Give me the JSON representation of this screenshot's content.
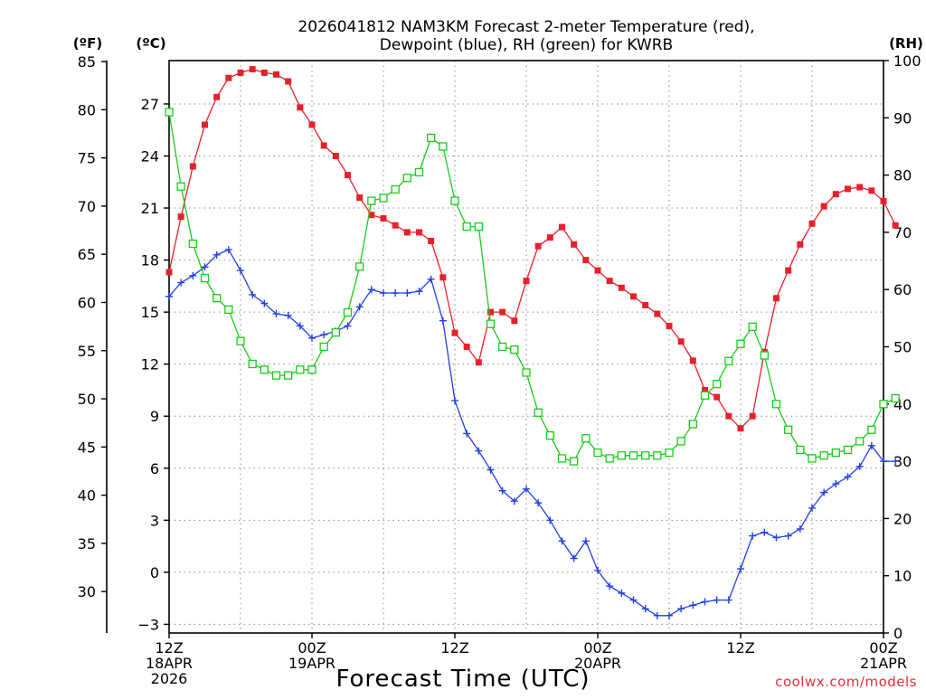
{
  "chart_data": {
    "type": "line",
    "title_line1": "2026041812 NAM3KM Forecast 2-meter Temperature (red),",
    "title_line2": "Dewpoint (blue), RH (green) for KWRB",
    "xlabel": "Forecast Time (UTC)",
    "credit": "coolwx.com/models",
    "units": {
      "fahrenheit": "(ºF)",
      "celsius": "(ºC)",
      "rh": "(RH)"
    },
    "x_range_hours": [
      0,
      60
    ],
    "celsius_range": [
      -3.5,
      29.5
    ],
    "rh_range": [
      0,
      100
    ],
    "fahrenheit_ticks": [
      85,
      80,
      75,
      70,
      65,
      60,
      55,
      50,
      45,
      40,
      35,
      30
    ],
    "celsius_ticks": [
      27,
      24,
      21,
      18,
      15,
      12,
      9,
      6,
      3,
      0,
      -3
    ],
    "celsius_tick_labels": [
      "27",
      "24",
      "21",
      "18",
      "15",
      "12",
      "9",
      "6",
      "3",
      "0",
      "−3"
    ],
    "rh_ticks": [
      100,
      90,
      80,
      70,
      60,
      50,
      40,
      30,
      20,
      10,
      0
    ],
    "x_ticks": [
      {
        "hour": 0,
        "lines": [
          "12Z",
          "18APR",
          "2026"
        ]
      },
      {
        "hour": 12,
        "lines": [
          "00Z",
          "19APR"
        ]
      },
      {
        "hour": 24,
        "lines": [
          "12Z"
        ]
      },
      {
        "hour": 36,
        "lines": [
          "00Z",
          "20APR"
        ]
      },
      {
        "hour": 48,
        "lines": [
          "12Z"
        ]
      },
      {
        "hour": 60,
        "lines": [
          "00Z",
          "21APR"
        ]
      }
    ],
    "series": [
      {
        "name": "Temperature",
        "unit": "C",
        "color": "#e8202a",
        "marker": "filled-square",
        "values": [
          17.3,
          20.5,
          23.4,
          25.8,
          27.4,
          28.5,
          28.8,
          29.0,
          28.8,
          28.7,
          28.3,
          26.8,
          25.8,
          24.6,
          24.0,
          22.9,
          21.6,
          20.6,
          20.4,
          20.0,
          19.6,
          19.6,
          19.1,
          17.0,
          13.8,
          13.0,
          12.1,
          15.0,
          15.0,
          14.5,
          16.8,
          18.8,
          19.3,
          19.9,
          18.9,
          18.0,
          17.4,
          16.8,
          16.4,
          15.9,
          15.4,
          14.9,
          14.2,
          13.3,
          12.2,
          10.5,
          10.1,
          9.0,
          8.3,
          9.0,
          12.7,
          15.8,
          17.4,
          18.9,
          20.1,
          21.1,
          21.8,
          22.1,
          22.2,
          22.0,
          21.4,
          20.0
        ]
      },
      {
        "name": "Dewpoint",
        "unit": "C",
        "color": "#2440e0",
        "marker": "plus",
        "values": [
          15.9,
          16.7,
          17.1,
          17.6,
          18.3,
          18.6,
          17.4,
          16.0,
          15.5,
          14.9,
          14.8,
          14.2,
          13.5,
          13.7,
          13.9,
          14.2,
          15.3,
          16.3,
          16.1,
          16.1,
          16.1,
          16.2,
          16.9,
          14.5,
          9.9,
          8.0,
          7.0,
          5.9,
          4.7,
          4.1,
          4.8,
          4.0,
          3.0,
          1.8,
          0.8,
          1.8,
          0.1,
          -0.8,
          -1.2,
          -1.6,
          -2.1,
          -2.5,
          -2.5,
          -2.1,
          -1.9,
          -1.7,
          -1.6,
          -1.6,
          0.2,
          2.1,
          2.3,
          2.0,
          2.1,
          2.5,
          3.7,
          4.6,
          5.1,
          5.5,
          6.1,
          7.3,
          6.4,
          6.4
        ]
      },
      {
        "name": "RH",
        "unit": "%",
        "color": "#18cc18",
        "marker": "open-square",
        "values": [
          91.0,
          78.0,
          68.0,
          62.0,
          58.5,
          56.5,
          51.0,
          47.0,
          46.0,
          45.0,
          45.0,
          46.0,
          46.0,
          50.0,
          52.5,
          56.0,
          64.0,
          75.5,
          76.0,
          77.5,
          79.5,
          80.5,
          86.5,
          85.0,
          75.5,
          71.0,
          71.0,
          54.0,
          50.0,
          49.5,
          45.5,
          38.5,
          34.5,
          30.5,
          30.0,
          34.0,
          31.5,
          30.5,
          31.0,
          31.0,
          31.0,
          31.0,
          31.5,
          33.5,
          36.5,
          41.5,
          43.5,
          47.5,
          50.5,
          53.5,
          48.5,
          40.0,
          35.5,
          32.0,
          30.5,
          31.0,
          31.5,
          32.0,
          33.5,
          35.5,
          40.0,
          41.0
        ]
      }
    ]
  }
}
